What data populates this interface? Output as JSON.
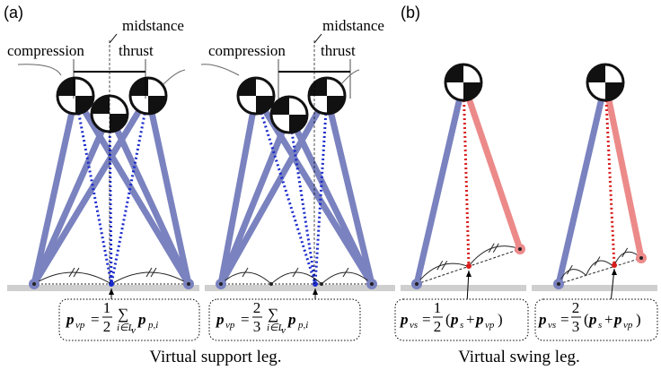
{
  "panels": {
    "a": "(a)",
    "b": "(b)"
  },
  "labels": [
    {
      "compression": "compression",
      "midstance": "midstance",
      "thrust": "thrust"
    },
    {
      "compression": "compression",
      "midstance": "midstance",
      "thrust": "thrust"
    }
  ],
  "support_formulas": [
    {
      "p": "p",
      "sub": "vp",
      "eq": "=",
      "num": "1",
      "den": "2",
      "sum": "∑",
      "sum_sub": "i∈L",
      "sum_sub2": "v",
      "term": "p",
      "term_sub": "p,i"
    },
    {
      "p": "p",
      "sub": "vp",
      "eq": "=",
      "num": "2",
      "den": "3",
      "sum": "∑",
      "sum_sub": "i∈L",
      "sum_sub2": "v",
      "term": "p",
      "term_sub": "p,i"
    }
  ],
  "swing_formulas": [
    {
      "p": "p",
      "sub": "vs",
      "eq": "=",
      "num": "1",
      "den": "2",
      "open": "(",
      "a": "p",
      "a_sub": "s",
      "plus": "+",
      "b": "p",
      "b_sub": "vp",
      "close": ")"
    },
    {
      "p": "p",
      "sub": "vs",
      "eq": "=",
      "num": "2",
      "den": "3",
      "open": "(",
      "a": "p",
      "a_sub": "s",
      "plus": "+",
      "b": "p",
      "b_sub": "vp",
      "close": ")"
    }
  ],
  "captions": {
    "support": "Virtual support leg.",
    "swing": "Virtual swing leg."
  }
}
